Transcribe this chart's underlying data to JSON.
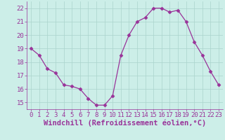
{
  "x": [
    0,
    1,
    2,
    3,
    4,
    5,
    6,
    7,
    8,
    9,
    10,
    11,
    12,
    13,
    14,
    15,
    16,
    17,
    18,
    19,
    20,
    21,
    22,
    23
  ],
  "y": [
    19.0,
    18.5,
    17.5,
    17.2,
    16.3,
    16.2,
    16.0,
    15.3,
    14.8,
    14.8,
    15.5,
    18.5,
    20.0,
    21.0,
    21.3,
    22.0,
    22.0,
    21.7,
    21.85,
    21.0,
    19.5,
    18.5,
    17.3,
    16.3
  ],
  "xlim": [
    -0.5,
    23.5
  ],
  "ylim": [
    14.5,
    22.5
  ],
  "yticks": [
    15,
    16,
    17,
    18,
    19,
    20,
    21,
    22
  ],
  "xticks": [
    0,
    1,
    2,
    3,
    4,
    5,
    6,
    7,
    8,
    9,
    10,
    11,
    12,
    13,
    14,
    15,
    16,
    17,
    18,
    19,
    20,
    21,
    22,
    23
  ],
  "xlabel": "Windchill (Refroidissement éolien,°C)",
  "line_color": "#993399",
  "marker": "D",
  "marker_size": 2.5,
  "bg_color": "#cceee8",
  "grid_color": "#aad4cc",
  "tick_label_fontsize": 6.5,
  "xlabel_fontsize": 7.5
}
